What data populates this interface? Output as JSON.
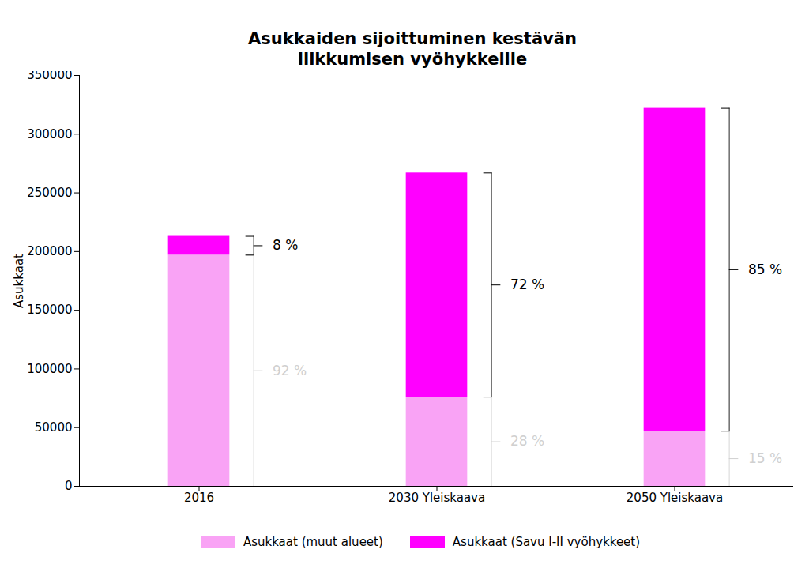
{
  "chart_data": {
    "type": "bar",
    "stacked": true,
    "title": "Asukkaiden sijoittuminen kestävän\nliikkumisen vyöhykkeille",
    "y_label": "Asukkaat",
    "categories": [
      "2016",
      "2030 Yleiskaava",
      "2050 Yleiskaava"
    ],
    "series": [
      {
        "name": "Asukkaat (muut alueet)",
        "color": "#f9a3f5",
        "values": [
          197000,
          76000,
          47000
        ],
        "percent_labels": [
          "92 %",
          "28 %",
          "15 %"
        ]
      },
      {
        "name": "Asukkaat (Savu I-II vyöhykkeet)",
        "color": "#ff00ff",
        "values": [
          16000,
          191000,
          275000
        ],
        "percent_labels": [
          "8 %",
          "72 %",
          "85 %"
        ]
      }
    ],
    "ylim": [
      0,
      350000
    ],
    "yticks": [
      0,
      50000,
      100000,
      150000,
      200000,
      250000,
      300000,
      350000
    ],
    "grid": false,
    "legend": "bottom"
  }
}
